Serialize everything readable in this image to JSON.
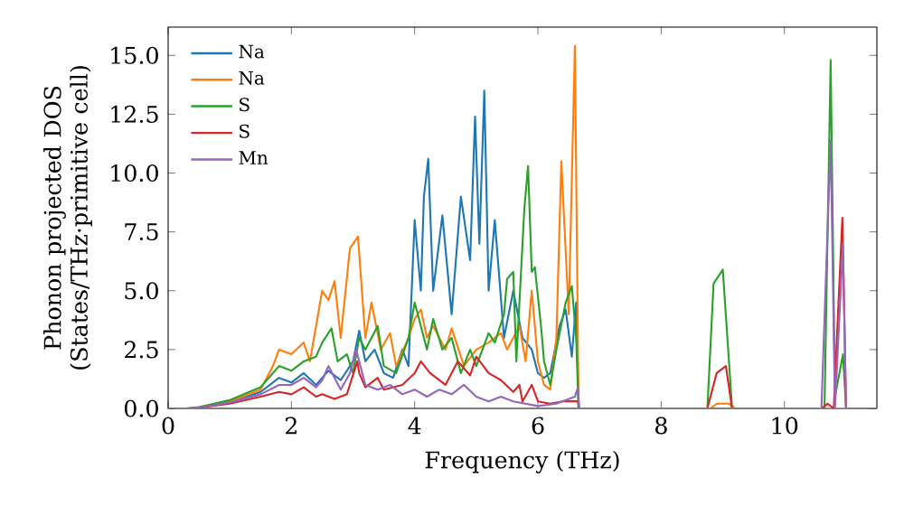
{
  "chart_data": {
    "type": "line",
    "xlabel": "Frequency (THz)",
    "ylabel": "Phonon projected DOS (States/THz·primitive cell)",
    "xlim": [
      0,
      11.5
    ],
    "ylim": [
      0,
      16.2
    ],
    "xticks": [
      0,
      2,
      4,
      6,
      8,
      10
    ],
    "yticks": [
      {
        "value": 0,
        "label": "0.0"
      },
      {
        "value": 2.5,
        "label": "2.5"
      },
      {
        "value": 5,
        "label": "5.0"
      },
      {
        "value": 7.5,
        "label": "7.5"
      },
      {
        "value": 10,
        "label": "10.0"
      },
      {
        "value": 12.5,
        "label": "12.5"
      },
      {
        "value": 15,
        "label": "15.0"
      }
    ],
    "legend": "top left",
    "grid": false,
    "line_style": "solid",
    "marker": "none",
    "series": [
      {
        "name": "Na",
        "color": "#1f77b4",
        "x": [
          0.5,
          1.0,
          1.5,
          1.8,
          2.0,
          2.2,
          2.4,
          2.6,
          2.8,
          3.0,
          3.1,
          3.2,
          3.35,
          3.5,
          3.65,
          3.8,
          3.9,
          4.0,
          4.1,
          4.15,
          4.22,
          4.3,
          4.45,
          4.6,
          4.75,
          4.9,
          4.98,
          5.05,
          5.13,
          5.2,
          5.3,
          5.45,
          5.6,
          5.75,
          5.9,
          6.0,
          6.1,
          6.2,
          6.35,
          6.45,
          6.55,
          6.62,
          6.66
        ],
        "values": [
          0.05,
          0.25,
          0.7,
          1.3,
          1.1,
          1.5,
          1.0,
          1.6,
          1.2,
          2.0,
          3.3,
          2.0,
          2.5,
          1.5,
          1.3,
          2.5,
          1.8,
          8.0,
          5.0,
          9.0,
          10.6,
          5.0,
          8.2,
          4.0,
          9.0,
          6.3,
          12.4,
          7.0,
          13.5,
          5.0,
          8.0,
          3.0,
          5.0,
          3.0,
          2.5,
          1.5,
          1.3,
          1.5,
          3.5,
          4.2,
          2.2,
          4.5,
          0
        ]
      },
      {
        "name": "Na",
        "color": "#ff7f0e",
        "x": [
          0.5,
          1.0,
          1.5,
          1.7,
          1.8,
          2.0,
          2.2,
          2.3,
          2.5,
          2.6,
          2.7,
          2.8,
          2.95,
          3.08,
          3.2,
          3.3,
          3.45,
          3.6,
          3.7,
          3.9,
          4.0,
          4.1,
          4.2,
          4.3,
          4.5,
          4.6,
          4.8,
          5.0,
          5.2,
          5.4,
          5.5,
          5.7,
          5.8,
          5.9,
          6.0,
          6.1,
          6.2,
          6.3,
          6.38,
          6.5,
          6.6,
          6.66,
          8.8,
          8.9,
          9.1,
          9.2,
          10.7,
          11.5
        ],
        "values": [
          0.05,
          0.3,
          0.8,
          1.8,
          2.5,
          2.3,
          2.8,
          2.0,
          5.0,
          4.6,
          5.4,
          3.0,
          6.8,
          7.3,
          3.0,
          4.5,
          2.5,
          3.2,
          1.8,
          3.0,
          3.8,
          4.2,
          3.0,
          3.5,
          2.5,
          3.4,
          1.8,
          2.5,
          2.8,
          3.2,
          2.5,
          3.5,
          2.0,
          5.0,
          2.0,
          1.0,
          0.8,
          3.0,
          10.5,
          4.0,
          15.4,
          0,
          0,
          0.2,
          0.2,
          0,
          0,
          0
        ]
      },
      {
        "name": "S",
        "color": "#2ca02c",
        "x": [
          0,
          0.3,
          0.5,
          1.0,
          1.5,
          1.8,
          2.0,
          2.2,
          2.4,
          2.5,
          2.65,
          2.75,
          2.9,
          3.0,
          3.1,
          3.2,
          3.4,
          3.5,
          3.7,
          3.9,
          4.0,
          4.1,
          4.2,
          4.3,
          4.45,
          4.6,
          4.75,
          4.9,
          5.0,
          5.2,
          5.3,
          5.45,
          5.5,
          5.6,
          5.65,
          5.78,
          5.84,
          5.9,
          5.95,
          6.05,
          6.1,
          6.2,
          6.3,
          6.45,
          6.55,
          6.62,
          6.66,
          8.75,
          8.85,
          9.0,
          9.1,
          9.15,
          10.65,
          10.75,
          10.82,
          10.95,
          11.0,
          11.5
        ],
        "values": [
          0,
          0,
          0.06,
          0.35,
          0.9,
          1.8,
          1.6,
          2.0,
          2.2,
          2.8,
          3.4,
          2.0,
          2.3,
          1.5,
          3.0,
          2.5,
          3.5,
          1.8,
          1.5,
          3.0,
          4.5,
          3.5,
          2.5,
          3.8,
          2.5,
          3.0,
          1.5,
          2.5,
          1.8,
          3.2,
          2.8,
          4.0,
          5.5,
          5.8,
          2.0,
          8.5,
          10.3,
          5.8,
          6.0,
          3.5,
          2.0,
          1.0,
          2.5,
          4.5,
          5.2,
          3.0,
          0,
          0,
          5.3,
          5.9,
          2.0,
          0,
          0,
          14.8,
          0.5,
          2.3,
          0,
          0
        ]
      },
      {
        "name": "S",
        "color": "#d62728",
        "x": [
          0,
          0.3,
          0.5,
          1.0,
          1.5,
          1.8,
          2.0,
          2.2,
          2.4,
          2.5,
          2.7,
          2.9,
          3.07,
          3.1,
          3.2,
          3.4,
          3.5,
          3.8,
          4.0,
          4.1,
          4.25,
          4.5,
          4.7,
          4.9,
          5.0,
          5.2,
          5.4,
          5.6,
          5.7,
          5.75,
          5.9,
          6.0,
          6.2,
          6.4,
          6.65,
          6.67,
          8.75,
          8.9,
          9.05,
          9.15,
          10.6,
          10.7,
          10.8,
          10.94,
          11.0,
          11.5
        ],
        "values": [
          0,
          0,
          0.03,
          0.2,
          0.5,
          0.7,
          0.6,
          0.9,
          0.5,
          0.6,
          0.4,
          0.6,
          2.0,
          1.5,
          0.9,
          1.3,
          0.8,
          1.0,
          1.5,
          2.0,
          1.5,
          1.0,
          2.0,
          1.4,
          2.2,
          1.5,
          1.2,
          0.7,
          1.0,
          0.3,
          1.0,
          0.3,
          0.2,
          0.3,
          0.3,
          0,
          0,
          1.5,
          1.8,
          0,
          0,
          0.2,
          0,
          8.1,
          0,
          0
        ]
      },
      {
        "name": "Mn",
        "color": "#9467bd",
        "x": [
          0,
          0.3,
          0.5,
          1.0,
          1.5,
          1.8,
          2.0,
          2.2,
          2.4,
          2.5,
          2.6,
          2.8,
          2.95,
          3.05,
          3.2,
          3.4,
          3.6,
          3.8,
          4.0,
          4.2,
          4.4,
          4.6,
          4.8,
          5.0,
          5.2,
          5.4,
          5.6,
          5.8,
          6.0,
          6.3,
          6.6,
          6.65,
          6.67,
          10.6,
          10.75,
          10.82,
          10.95,
          11.0,
          11.5
        ],
        "values": [
          0,
          0,
          0.04,
          0.25,
          0.6,
          1.0,
          1.0,
          1.3,
          0.9,
          1.2,
          1.8,
          0.8,
          1.5,
          2.5,
          1.0,
          0.8,
          1.0,
          0.6,
          0.8,
          0.5,
          0.8,
          0.6,
          1.0,
          0.5,
          0.3,
          0.5,
          0.3,
          0.2,
          0.1,
          0.2,
          0.5,
          0.9,
          0,
          0,
          11.4,
          0,
          7.0,
          0,
          0
        ]
      }
    ]
  }
}
